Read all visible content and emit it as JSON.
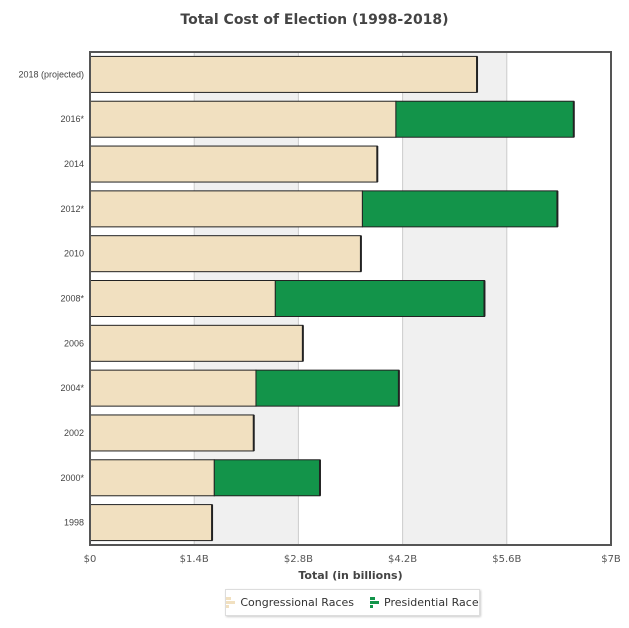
{
  "chart_data": {
    "type": "bar",
    "orientation": "horizontal",
    "stacked": true,
    "title": "Total Cost of Election (1998-2018)",
    "xlabel": "Total (in billions)",
    "ylabel": "",
    "xlim": [
      0,
      7
    ],
    "x_ticks": [
      "$0",
      "$1.4B",
      "$2.8B",
      "$4.2B",
      "$5.6B",
      "$7B"
    ],
    "categories": [
      "2018 (projected)",
      "2016*",
      "2014",
      "2012*",
      "2010",
      "2008*",
      "2006",
      "2004*",
      "2002",
      "2000*",
      "1998"
    ],
    "series": [
      {
        "name": "Congressional Races",
        "color": "#f1e0c0",
        "values": [
          5.2,
          4.11,
          3.86,
          3.66,
          3.64,
          2.49,
          2.86,
          2.23,
          2.2,
          1.67,
          1.64
        ]
      },
      {
        "name": "Presidential Race",
        "color": "#13944a",
        "values": [
          0,
          2.39,
          0,
          2.62,
          0,
          2.81,
          0,
          1.92,
          0,
          1.42,
          0
        ]
      }
    ],
    "legend": "bottom-center",
    "grid": true
  }
}
